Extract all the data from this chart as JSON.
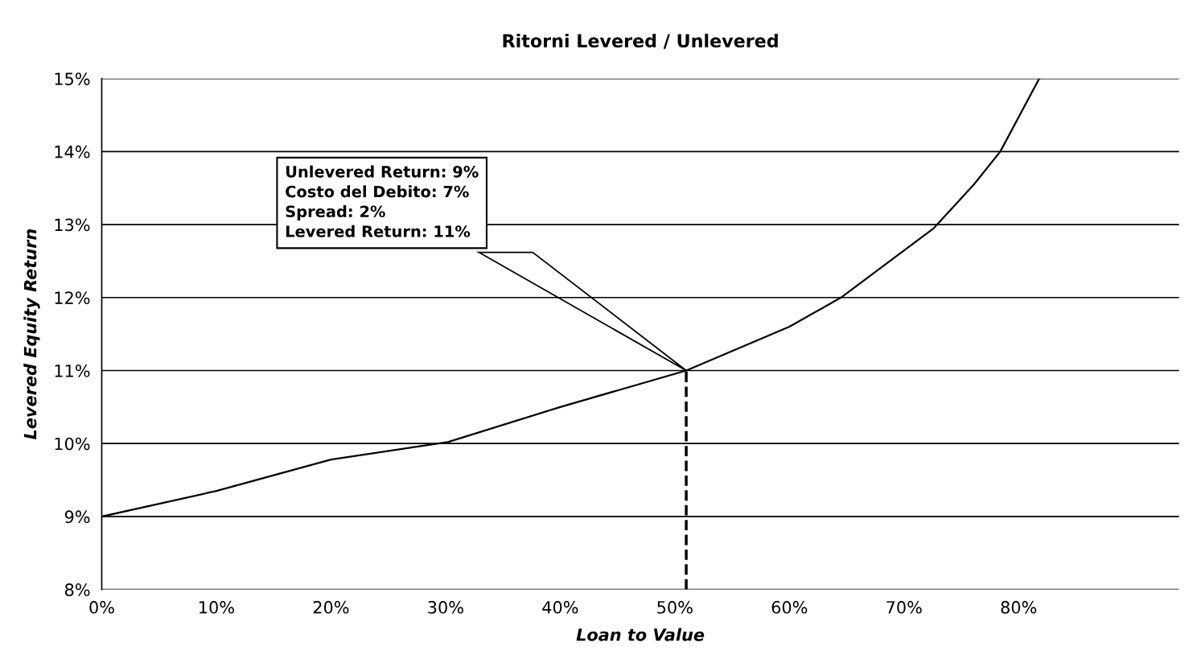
{
  "chart_data": {
    "type": "line",
    "title": "Ritorni Levered / Unlevered",
    "xlabel": "Loan to Value",
    "ylabel": "Levered Equity Return",
    "x": [
      0,
      10,
      20,
      30.2,
      40,
      51,
      60,
      64.5,
      72.6,
      76.1,
      78.4,
      81.8
    ],
    "series": [
      {
        "color": "#000000",
        "values": [
          9.0,
          9.35,
          9.78,
          10.02,
          10.5,
          11.0,
          11.6,
          12.0,
          12.95,
          13.55,
          14.0,
          15.0
        ]
      }
    ],
    "xlim": [
      0,
      94
    ],
    "ylim": [
      8,
      15
    ],
    "xticks": [
      {
        "value": 0,
        "label": "0%"
      },
      {
        "value": 10,
        "label": "10%"
      },
      {
        "value": 20,
        "label": "20%"
      },
      {
        "value": 30,
        "label": "30%"
      },
      {
        "value": 40,
        "label": "40%"
      },
      {
        "value": 50,
        "label": "50%"
      },
      {
        "value": 60,
        "label": "60%"
      },
      {
        "value": 70,
        "label": "70%"
      },
      {
        "value": 80,
        "label": "80%"
      }
    ],
    "yticks": [
      {
        "value": 8,
        "label": "8%"
      },
      {
        "value": 9,
        "label": "9%"
      },
      {
        "value": 10,
        "label": "10%"
      },
      {
        "value": 11,
        "label": "11%"
      },
      {
        "value": 12,
        "label": "12%"
      },
      {
        "value": 13,
        "label": "13%"
      },
      {
        "value": 14,
        "label": "14%"
      },
      {
        "value": 15,
        "label": "15%"
      }
    ],
    "grid": "y",
    "marker": "none",
    "line_style": "solid",
    "ref_lines": [
      {
        "axis": "x",
        "value": 51,
        "line_style": "dashed",
        "color": "#000000"
      }
    ],
    "annotations": [
      "Unlevered Return: 9%\nCosto del Debito: 7%\nSpread: 2%\nLevered Return: 11%"
    ]
  }
}
